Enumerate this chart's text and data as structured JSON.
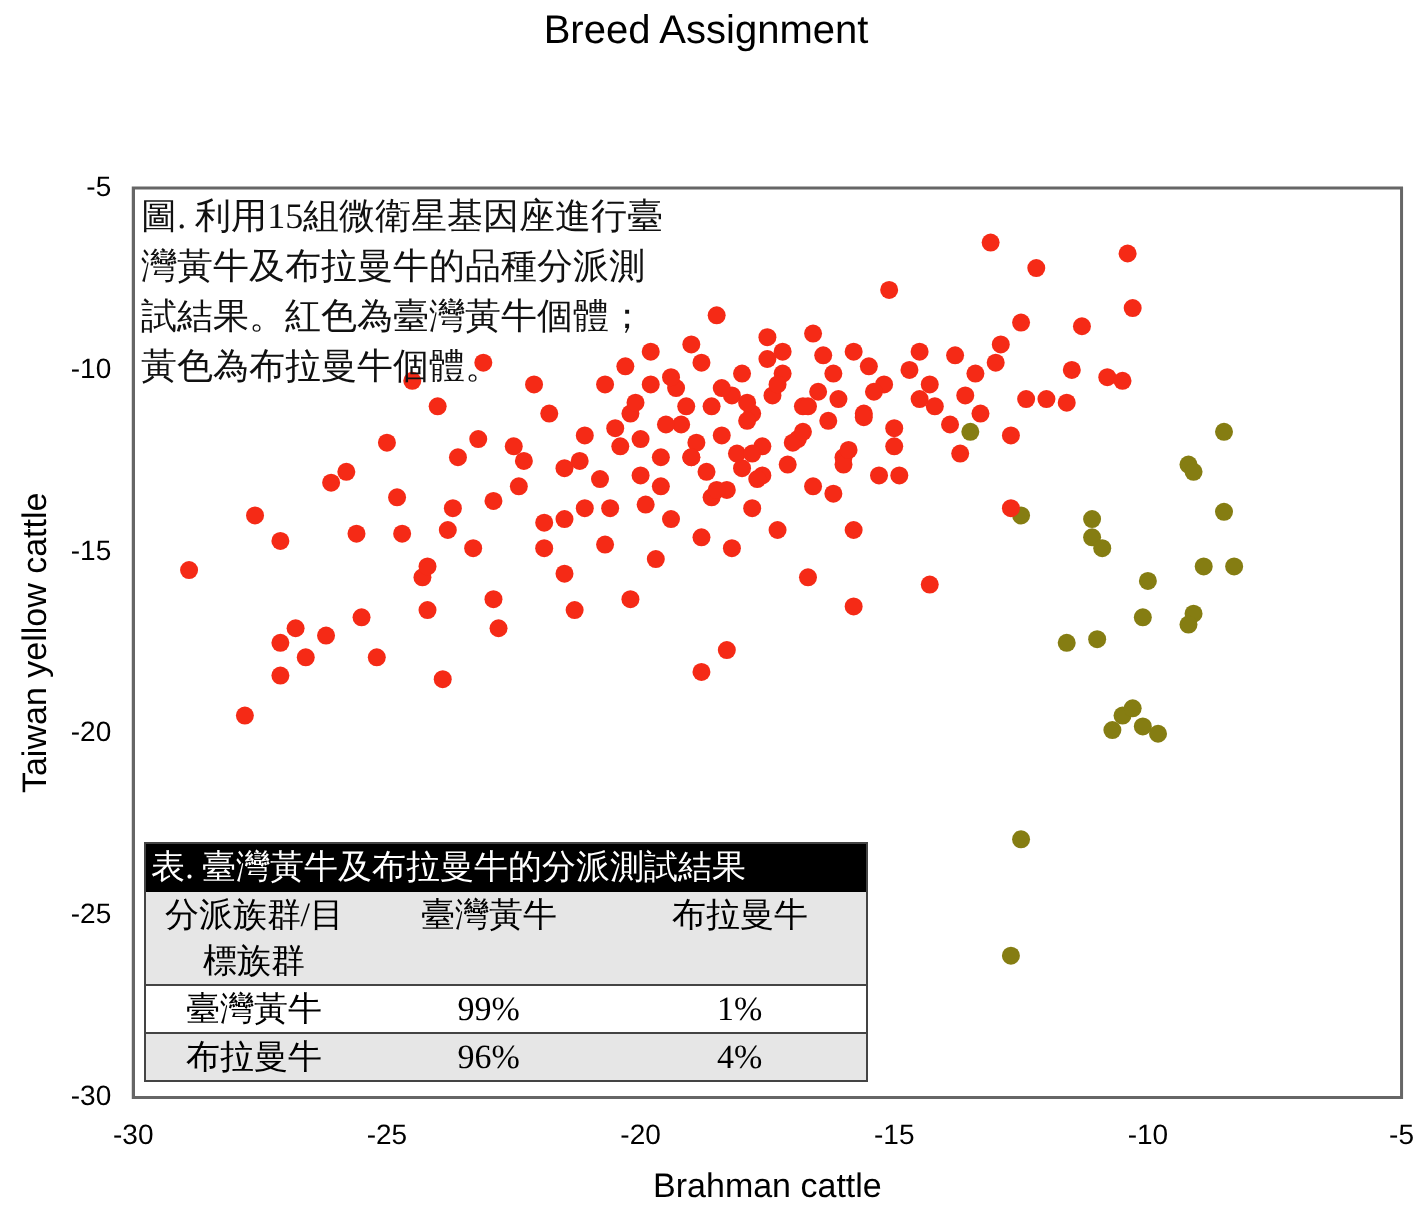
{
  "chart_data": {
    "type": "scatter",
    "title": "Breed Assignment",
    "xlabel": "Brahman cattle",
    "ylabel": "Taiwan yellow cattle",
    "xlim": [
      -30,
      -5
    ],
    "xticks": [
      -30,
      -25,
      -20,
      -15,
      -10,
      -5
    ],
    "ylim": [
      -30,
      -5
    ],
    "yticks": [
      -30,
      -25,
      -20,
      -15,
      -10,
      -5
    ],
    "grid": false,
    "legend": false,
    "marker": "circle",
    "annotations": [
      "圖. 利用15組微衛星基因座進行臺灣黃牛及布拉曼牛的品種分派測試結果。紅色為臺灣黃牛個體；黃色為布拉曼牛個體。",
      "表. 臺灣黃牛及布拉曼牛的分派測試結果",
      "分派族群/目標族群",
      "臺灣黃牛",
      "布拉曼牛",
      "臺灣黃牛",
      "99%",
      "1%",
      "布拉曼牛",
      "96%",
      "4%"
    ],
    "series": [
      {
        "color": "#f52a16",
        "x": [
          -28.9,
          -27.8,
          -27.6,
          -27.1,
          -27.1,
          -27.1,
          -26.8,
          -26.6,
          -26.2,
          -26.1,
          -25.8,
          -25.6,
          -25.5,
          -25.2,
          -25.0,
          -24.8,
          -24.7,
          -24.5,
          -24.3,
          -24.2,
          -24.2,
          -23.9,
          -24.0,
          -23.8,
          -23.7,
          -23.6,
          -23.3,
          -23.1,
          -22.9,
          -22.8,
          -22.9,
          -23.2,
          -22.4,
          -22.3,
          -21.9,
          -21.8,
          -21.5,
          -21.1,
          -20.7,
          -20.2,
          -20.0,
          -18.8,
          -18.3,
          -19.7,
          -19.3,
          -19.0,
          -18.5,
          -18.0,
          -17.5,
          -17.3,
          -16.7,
          -15.8,
          -14.3,
          -15.8,
          -16.2,
          -16.9,
          -16.0,
          -15.1,
          -14.5,
          -14.5,
          -13.8,
          -13.4,
          -13.1,
          -12.2,
          -12.5,
          -11.3,
          -11.5,
          -10.8,
          -10.4,
          -10.3,
          -10.5,
          -11.6,
          -12.4,
          -12.0,
          -12.7,
          -12.7,
          -13.7,
          -13.3,
          -13.9,
          -12.9,
          -13.0,
          -14.3,
          -15.6,
          -16.2,
          -16.6,
          -17.2,
          -17.8,
          -18.4,
          -17.6,
          -18.6,
          -19.0,
          -19.4,
          -20.2,
          -20.4,
          -21.1,
          -21.5,
          -20.7,
          -19.8,
          -19.2,
          -18.2,
          -17.4,
          -16.8,
          -16.6,
          -17.8,
          -18.2,
          -18.8,
          -19.6,
          -21.9,
          -21.5,
          -15.8,
          -15.2,
          -15.0,
          -15.3,
          -18.8,
          -18.0,
          -17.6,
          -19.8,
          -22.1,
          -22.5,
          -21.3,
          -20.5,
          -20.1,
          -19.6,
          -19.1,
          -18.7,
          -18.4,
          -18.1,
          -17.9,
          -17.7,
          -17.3,
          -17.0,
          -16.5,
          -16.3,
          -16.0,
          -15.5,
          -15.0,
          -14.7,
          -14.2,
          -13.6,
          -20.8,
          -20.3,
          -19.9,
          -19.4,
          -18.9,
          -18.6,
          -18.3,
          -17.9,
          -17.5,
          -17.1,
          -16.8,
          -16.4,
          -15.9,
          -15.4,
          -14.9,
          -21.2,
          -20.6,
          -20.0,
          -19.5,
          -19.0,
          -18.5,
          -17.8,
          -17.2,
          -16.7,
          -16.1,
          -15.6
        ],
        "values": [
          -15.5,
          -19.5,
          -14.0,
          -14.7,
          -17.5,
          -18.4,
          -17.1,
          -17.9,
          -17.3,
          -13.1,
          -12.8,
          -14.5,
          -16.8,
          -17.9,
          -12.0,
          -13.5,
          -14.5,
          -10.3,
          -15.7,
          -15.4,
          -16.6,
          -18.5,
          -11.0,
          -14.4,
          -13.8,
          -12.4,
          -14.9,
          -9.8,
          -16.3,
          -17.1,
          -13.6,
          -11.9,
          -13.2,
          -12.5,
          -14.2,
          -11.2,
          -15.6,
          -13.8,
          -14.8,
          -16.3,
          -12.9,
          -18.3,
          -17.7,
          -15.2,
          -10.5,
          -9.3,
          -8.5,
          -12.7,
          -9.1,
          -14.4,
          -15.7,
          -16.5,
          -15.9,
          -14.4,
          -13.4,
          -11.9,
          -12.4,
          -7.8,
          -10.8,
          -9.5,
          -9.6,
          -10.1,
          -6.5,
          -7.2,
          -8.7,
          -8.8,
          -10.0,
          -10.2,
          -6.8,
          -8.3,
          -10.3,
          -10.9,
          -10.8,
          -10.8,
          -11.8,
          -13.8,
          -12.3,
          -11.2,
          -11.5,
          -9.3,
          -9.8,
          -10.4,
          -11.2,
          -10.1,
          -9.0,
          -10.1,
          -11.2,
          -11.8,
          -12.9,
          -13.5,
          -12.4,
          -14.1,
          -11.2,
          -12.1,
          -11.8,
          -12.7,
          -10.4,
          -9.5,
          -11.5,
          -10.7,
          -10.7,
          -11.0,
          -13.2,
          -13.8,
          -14.9,
          -14.6,
          -13.2,
          -14.9,
          -14.1,
          -9.5,
          -10.4,
          -12.1,
          -12.9,
          -9.8,
          -10.1,
          -12.1,
          -10.4,
          -10.4,
          -12.1,
          -16.6,
          -11.6,
          -10.9,
          -12.4,
          -11.0,
          -12.8,
          -10.5,
          -12.3,
          -11.4,
          -13.0,
          -10.4,
          -12.0,
          -10.6,
          -11.4,
          -12.6,
          -9.9,
          -11.6,
          -10.0,
          -11.0,
          -10.7,
          -13.0,
          -9.9,
          -13.7,
          -10.2,
          -12.0,
          -11.0,
          -13.3,
          -10.9,
          -9.7,
          -12.6,
          -11.7,
          -9.6,
          -12.2,
          -10.6,
          -12.9,
          -12.5,
          -13.8,
          -11.9,
          -11.5,
          -12.4,
          -13.3,
          -12.3,
          -9.5,
          -11.0,
          -10.8,
          -11.3
        ]
      },
      {
        "color": "#857d12",
        "x": [
          -13.5,
          -12.5,
          -11.1,
          -11.1,
          -10.9,
          -11.6,
          -11.0,
          -9.2,
          -9.1,
          -8.5,
          -8.5,
          -8.9,
          -8.3,
          -10.0,
          -10.1,
          -9.1,
          -9.2,
          -10.7,
          -10.5,
          -10.3,
          -10.1,
          -9.8,
          -12.5,
          -12.7
        ],
        "values": [
          -11.7,
          -14.0,
          -14.1,
          -14.6,
          -14.9,
          -17.5,
          -17.4,
          -12.6,
          -12.8,
          -11.7,
          -13.9,
          -15.4,
          -15.4,
          -15.8,
          -16.8,
          -16.7,
          -17.0,
          -19.9,
          -19.5,
          -19.3,
          -19.8,
          -20.0,
          -22.9,
          -26.1
        ]
      }
    ]
  }
}
